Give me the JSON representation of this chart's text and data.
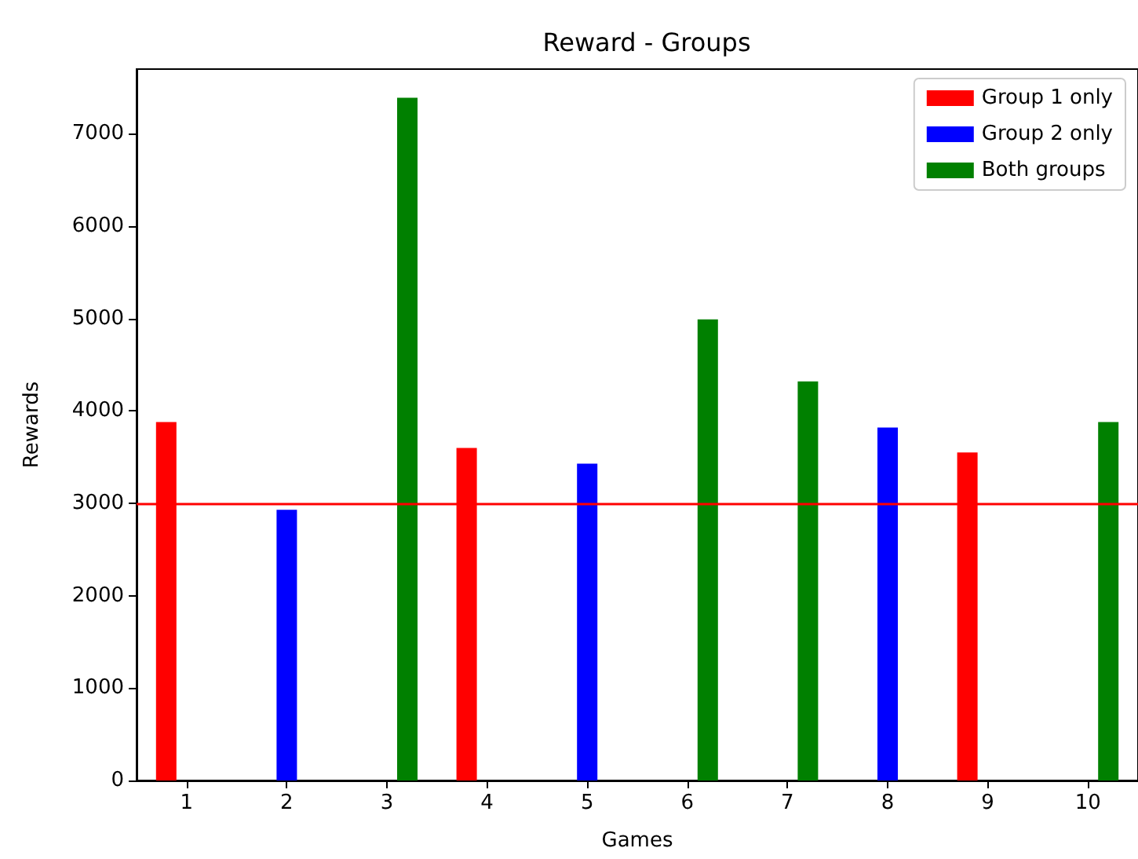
{
  "chart_data": {
    "type": "bar",
    "title": "Reward - Groups",
    "xlabel": "Games",
    "ylabel": "Rewards",
    "categories": [
      "1",
      "2",
      "3",
      "4",
      "5",
      "6",
      "7",
      "8",
      "9",
      "10"
    ],
    "series": [
      {
        "name": "Group 1 only",
        "color": "#ff0000",
        "values": [
          3880,
          null,
          null,
          3600,
          null,
          null,
          null,
          null,
          3550,
          null
        ]
      },
      {
        "name": "Group 2 only",
        "color": "#0000ff",
        "values": [
          null,
          2930,
          null,
          null,
          3430,
          null,
          null,
          3820,
          null,
          null
        ]
      },
      {
        "name": "Both groups",
        "color": "#008000",
        "values": [
          null,
          null,
          7390,
          null,
          null,
          4990,
          4320,
          null,
          null,
          3880
        ]
      }
    ],
    "ylim": [
      0,
      7700
    ],
    "yticks": [
      0,
      1000,
      2000,
      3000,
      4000,
      5000,
      6000,
      7000
    ],
    "ref_lines": [
      {
        "axis": "y",
        "value": 3000,
        "color": "#ff0000",
        "line_style": "solid"
      }
    ],
    "grid": false,
    "legend": "top right"
  }
}
